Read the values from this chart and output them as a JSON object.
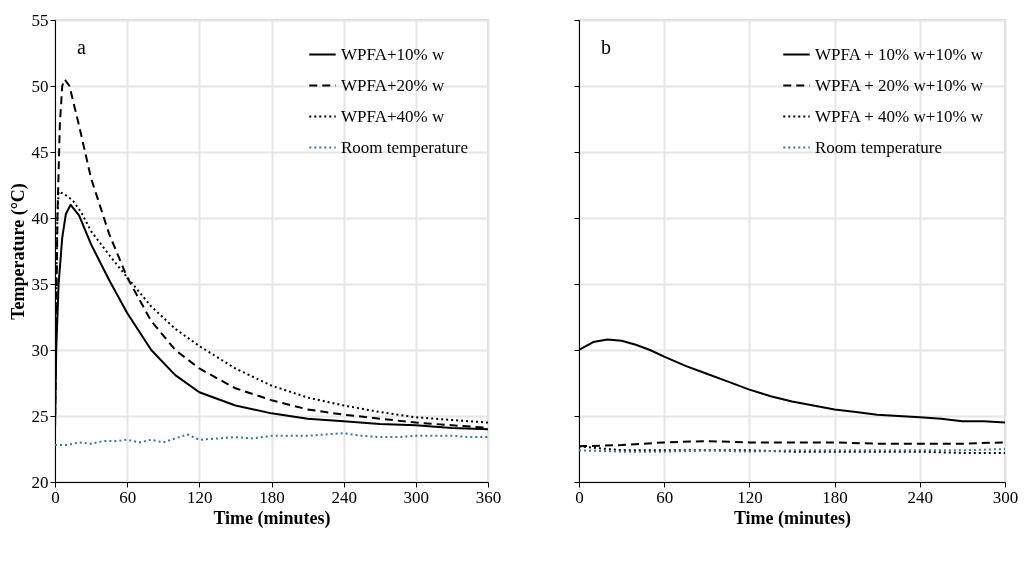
{
  "chart_data": [
    {
      "type": "line",
      "xlabel": "Time (minutes)",
      "ylabel": "Temperature (°C)",
      "annotations": [
        "a"
      ],
      "xlim": [
        0,
        360
      ],
      "xticks": [
        0,
        60,
        120,
        180,
        240,
        300,
        360
      ],
      "ylim": [
        20,
        55
      ],
      "yticks": [
        20,
        25,
        30,
        35,
        40,
        45,
        50,
        55
      ],
      "grid": true,
      "legend": "top right",
      "series": [
        {
          "name": "WPFA+10% w",
          "color": "#000000",
          "line_style": "solid",
          "x": [
            0,
            1,
            3,
            6,
            9,
            13,
            20,
            30,
            45,
            60,
            80,
            100,
            120,
            150,
            180,
            210,
            240,
            270,
            300,
            330,
            360
          ],
          "values": [
            24,
            30,
            35,
            38.5,
            40.3,
            41,
            40.2,
            38,
            35.3,
            32.8,
            30,
            28.1,
            26.8,
            25.8,
            25.2,
            24.8,
            24.6,
            24.4,
            24.3,
            24.1,
            24
          ]
        },
        {
          "name": "WPFA+20% w",
          "color": "#000000",
          "line_style": "dashed",
          "x": [
            0,
            1,
            2,
            4,
            6,
            8,
            12,
            20,
            30,
            45,
            60,
            80,
            100,
            120,
            150,
            180,
            210,
            240,
            270,
            300,
            330,
            360
          ],
          "values": [
            24,
            32,
            40,
            47,
            50,
            50.5,
            50,
            47,
            43,
            38.8,
            35.5,
            32.2,
            30,
            28.6,
            27.1,
            26.2,
            25.5,
            25.1,
            24.8,
            24.5,
            24.3,
            24.1
          ]
        },
        {
          "name": "WPFA+40% w",
          "color": "#000000",
          "line_style": "dotted",
          "x": [
            0,
            1,
            2,
            3,
            8,
            15,
            22,
            30,
            45,
            60,
            80,
            100,
            120,
            150,
            180,
            210,
            240,
            270,
            300,
            330,
            360
          ],
          "values": [
            24,
            35,
            40,
            42,
            41.8,
            41.3,
            40.4,
            39,
            37.2,
            35.5,
            33.3,
            31.6,
            30.3,
            28.6,
            27.3,
            26.4,
            25.8,
            25.3,
            24.9,
            24.7,
            24.5
          ]
        },
        {
          "name": "Room temperature",
          "color": "#2e75b6",
          "line_style": "dotted",
          "x": [
            0,
            10,
            20,
            30,
            40,
            50,
            60,
            70,
            80,
            90,
            100,
            110,
            120,
            135,
            150,
            165,
            180,
            195,
            210,
            225,
            240,
            255,
            270,
            285,
            300,
            315,
            330,
            345,
            360
          ],
          "values": [
            22.8,
            22.8,
            23.0,
            22.9,
            23.1,
            23.1,
            23.2,
            23.0,
            23.2,
            23.0,
            23.3,
            23.6,
            23.2,
            23.3,
            23.4,
            23.3,
            23.5,
            23.5,
            23.5,
            23.6,
            23.7,
            23.5,
            23.4,
            23.4,
            23.5,
            23.5,
            23.5,
            23.4,
            23.4
          ]
        }
      ]
    },
    {
      "type": "line",
      "xlabel": "Time (minutes)",
      "annotations": [
        "b"
      ],
      "xlim": [
        0,
        300
      ],
      "xticks": [
        0,
        60,
        120,
        180,
        240,
        300
      ],
      "ylim": [
        20,
        55
      ],
      "yticks": [
        20,
        25,
        30,
        35,
        40,
        45,
        50,
        55
      ],
      "tick_labels": "x",
      "grid": true,
      "legend": "top right",
      "series": [
        {
          "name": "WPFA + 10% w+10% w",
          "color": "#000000",
          "line_style": "solid",
          "x": [
            0,
            10,
            20,
            30,
            40,
            50,
            60,
            75,
            90,
            105,
            120,
            135,
            150,
            165,
            180,
            195,
            210,
            225,
            240,
            255,
            270,
            285,
            300
          ],
          "values": [
            30,
            30.6,
            30.8,
            30.7,
            30.4,
            30,
            29.5,
            28.8,
            28.2,
            27.6,
            27.0,
            26.5,
            26.1,
            25.8,
            25.5,
            25.3,
            25.1,
            25.0,
            24.9,
            24.8,
            24.6,
            24.6,
            24.5
          ]
        },
        {
          "name": "WPFA + 20% w+10% w",
          "color": "#000000",
          "line_style": "dashed",
          "x": [
            0,
            30,
            60,
            90,
            120,
            150,
            180,
            210,
            240,
            270,
            300
          ],
          "values": [
            22.7,
            22.8,
            23.0,
            23.1,
            23.0,
            23.0,
            23.0,
            22.9,
            22.9,
            22.9,
            23.0
          ]
        },
        {
          "name": "WPFA + 40% w+10% w",
          "color": "#000000",
          "line_style": "dotted",
          "x": [
            0,
            30,
            60,
            90,
            120,
            150,
            180,
            210,
            240,
            270,
            300
          ],
          "values": [
            22.7,
            22.4,
            22.4,
            22.4,
            22.4,
            22.3,
            22.3,
            22.3,
            22.3,
            22.2,
            22.2
          ]
        },
        {
          "name": "Room temperature",
          "color": "#2e75b6",
          "line_style": "dotted",
          "x": [
            0,
            30,
            60,
            90,
            120,
            150,
            180,
            210,
            240,
            270,
            300
          ],
          "values": [
            22.4,
            22.3,
            22.3,
            22.4,
            22.3,
            22.4,
            22.4,
            22.4,
            22.4,
            22.4,
            22.5
          ]
        }
      ]
    }
  ]
}
